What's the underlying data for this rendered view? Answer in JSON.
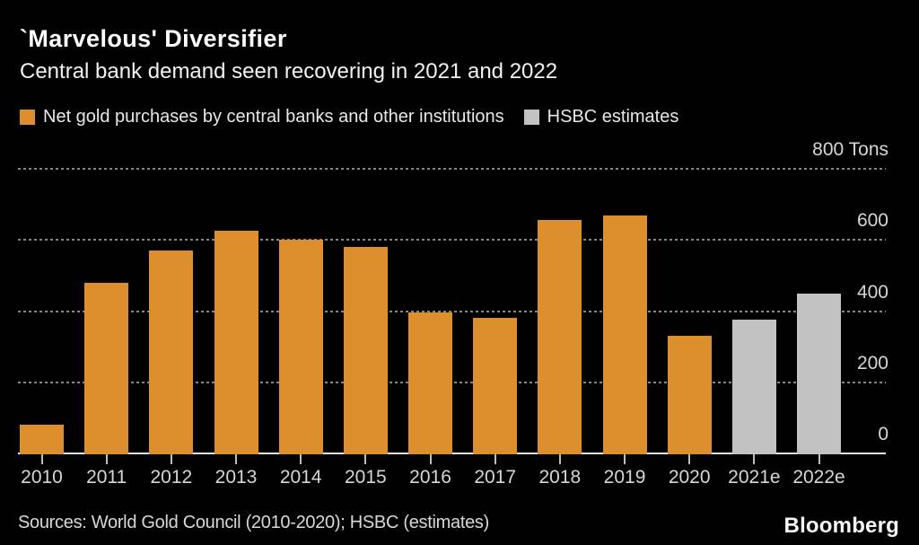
{
  "header": {
    "title": "`Marvelous' Diversifier",
    "subtitle": "Central bank demand seen recovering in 2021 and 2022"
  },
  "legend": {
    "items": [
      {
        "label": "Net gold purchases by central banks and other institutions",
        "color": "#DE8F2D"
      },
      {
        "label": "HSBC estimates",
        "color": "#C2C2C2"
      }
    ]
  },
  "chart_data": {
    "type": "bar",
    "title": "`Marvelous' Diversifier",
    "subtitle": "Central bank demand seen recovering in 2021 and 2022",
    "unit": "Tons",
    "categories": [
      "2010",
      "2011",
      "2012",
      "2013",
      "2014",
      "2015",
      "2016",
      "2017",
      "2018",
      "2019",
      "2020",
      "2021e",
      "2022e"
    ],
    "series": [
      {
        "name": "Net gold purchases by central banks and other institutions",
        "color": "#DE8F2D",
        "values": [
          80,
          480,
          570,
          625,
          600,
          580,
          395,
          380,
          655,
          670,
          330,
          null,
          null
        ]
      },
      {
        "name": "HSBC estimates",
        "color": "#C2C2C2",
        "values": [
          null,
          null,
          null,
          null,
          null,
          null,
          null,
          null,
          null,
          null,
          null,
          375,
          450
        ]
      }
    ],
    "ylim": [
      0,
      800
    ],
    "yticks": [
      {
        "label": "800 Tons",
        "value": 800
      },
      {
        "label": "600",
        "value": 600
      },
      {
        "label": "400",
        "value": 400
      },
      {
        "label": "200",
        "value": 200
      },
      {
        "label": "0",
        "value": 0
      }
    ],
    "grid": "horizontal-dotted",
    "legend_position": "top"
  },
  "footer": {
    "source": "Sources: World Gold Council (2010-2020); HSBC (estimates)",
    "logo": "Bloomberg"
  }
}
